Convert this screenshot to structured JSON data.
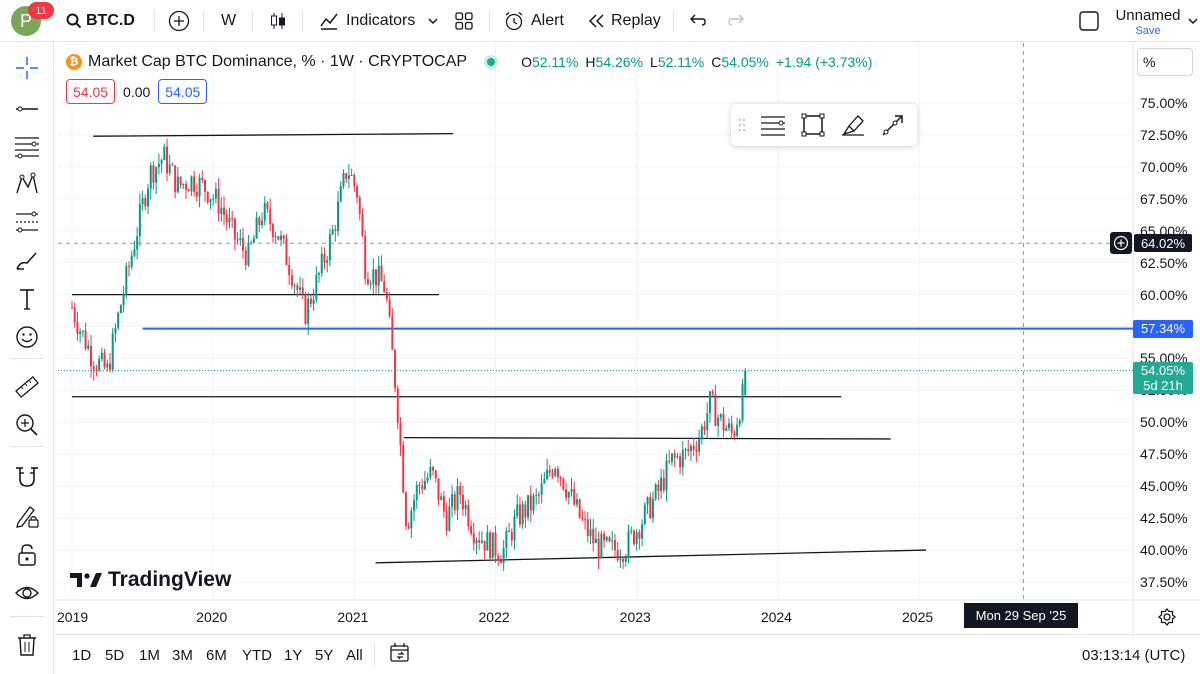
{
  "header": {
    "notification_count": "11",
    "avatar_letter": "P",
    "symbol": "BTC.D",
    "interval": "W",
    "indicators_label": "Indicators",
    "alert_label": "Alert",
    "replay_label": "Replay",
    "layout_name": "Unnamed",
    "save_label": "Save"
  },
  "left_tools": [
    "crosshair-icon",
    "trend-line-icon",
    "fib-lines-icon",
    "pattern-icon",
    "prediction-icon",
    "brush-icon",
    "text-icon",
    "emoji-icon",
    "ruler-icon",
    "zoom-in-icon",
    "magnet-icon",
    "lock-draw-icon",
    "lock-icon",
    "eye-icon",
    "trash-icon"
  ],
  "legend": {
    "title": "Market Cap BTC Dominance, % · 1W · CRYPTOCAP",
    "o_label": "O",
    "o_value": "52.11%",
    "h_label": "H",
    "h_value": "54.26%",
    "l_label": "L",
    "l_value": "52.11%",
    "c_label": "C",
    "c_value": "54.05%",
    "change": "+1.94 (+3.73%)",
    "val1": "54.05",
    "val2": "0.00",
    "val3": "54.05"
  },
  "price_scale": {
    "unit_button": "%",
    "labels": [
      "75.00%",
      "72.50%",
      "70.00%",
      "67.50%",
      "65.00%",
      "62.50%",
      "60.00%",
      "57.50%",
      "55.00%",
      "52.50%",
      "50.00%",
      "47.50%",
      "45.00%",
      "42.50%",
      "40.00%",
      "37.50%"
    ],
    "crosshair_price": "64.02%",
    "hline_price": "57.34%",
    "last_price": "54.05%",
    "countdown": "5d 21h"
  },
  "time_scale": {
    "labels": [
      "2019",
      "2020",
      "2021",
      "2022",
      "2023",
      "2024",
      "2025"
    ],
    "crosshair_date": "Mon 29 Sep '25"
  },
  "watermark": "TradingView",
  "bottom": {
    "ranges": [
      "1D",
      "5D",
      "1M",
      "3M",
      "6M",
      "YTD",
      "1Y",
      "5Y",
      "All"
    ],
    "clock": "03:13:14 (UTC)"
  },
  "colors": {
    "up": "#089981",
    "down": "#f23645",
    "hline": "#2962ff",
    "brand_btc": "#f7931a"
  },
  "chart_data": {
    "type": "candlestick",
    "title": "Market Cap BTC Dominance, % · 1W · CRYPTOCAP",
    "interval": "1W",
    "ylim": [
      36.5,
      77
    ],
    "x_ticks": [
      "2019",
      "2020",
      "2021",
      "2022",
      "2023",
      "2024",
      "2025"
    ],
    "x_range": [
      2019,
      2025.85
    ],
    "approx_path": [
      [
        2019.0,
        59.0
      ],
      [
        2019.05,
        57.5
      ],
      [
        2019.15,
        55.0
      ],
      [
        2019.25,
        54.0
      ],
      [
        2019.35,
        59.5
      ],
      [
        2019.45,
        64.5
      ],
      [
        2019.55,
        69.5
      ],
      [
        2019.65,
        70.8
      ],
      [
        2019.75,
        68.5
      ],
      [
        2019.85,
        69.0
      ],
      [
        2019.95,
        68.3
      ],
      [
        2020.05,
        67.0
      ],
      [
        2020.15,
        64.5
      ],
      [
        2020.25,
        63.0
      ],
      [
        2020.35,
        66.5
      ],
      [
        2020.45,
        65.0
      ],
      [
        2020.55,
        62.0
      ],
      [
        2020.65,
        58.5
      ],
      [
        2020.75,
        61.5
      ],
      [
        2020.85,
        65.0
      ],
      [
        2020.95,
        70.0
      ],
      [
        2021.02,
        68.0
      ],
      [
        2021.08,
        62.0
      ],
      [
        2021.15,
        61.5
      ],
      [
        2021.22,
        60.5
      ],
      [
        2021.3,
        52.0
      ],
      [
        2021.37,
        42.0
      ],
      [
        2021.45,
        45.0
      ],
      [
        2021.55,
        46.0
      ],
      [
        2021.65,
        42.5
      ],
      [
        2021.75,
        44.5
      ],
      [
        2021.85,
        41.5
      ],
      [
        2021.95,
        40.5
      ],
      [
        2022.05,
        39.8
      ],
      [
        2022.15,
        42.5
      ],
      [
        2022.3,
        44.0
      ],
      [
        2022.42,
        47.0
      ],
      [
        2022.5,
        45.0
      ],
      [
        2022.62,
        42.0
      ],
      [
        2022.72,
        40.3
      ],
      [
        2022.82,
        40.0
      ],
      [
        2022.92,
        40.2
      ],
      [
        2023.02,
        42.0
      ],
      [
        2023.15,
        44.5
      ],
      [
        2023.25,
        47.0
      ],
      [
        2023.35,
        47.5
      ],
      [
        2023.45,
        49.0
      ],
      [
        2023.52,
        51.5
      ],
      [
        2023.6,
        50.0
      ],
      [
        2023.68,
        49.0
      ],
      [
        2023.75,
        52.0
      ],
      [
        2023.78,
        54.05
      ]
    ],
    "drawings": {
      "horizontal_line": 57.34,
      "trend_lines": [
        {
          "from": [
            2019.15,
            72.4
          ],
          "to": [
            2021.7,
            72.6
          ]
        },
        {
          "from": [
            2019.0,
            60.0
          ],
          "to": [
            2021.6,
            60.0
          ]
        },
        {
          "from": [
            2019.0,
            52.0
          ],
          "to": [
            2024.45,
            52.0
          ]
        },
        {
          "from": [
            2021.35,
            48.8
          ],
          "to": [
            2024.8,
            48.7
          ]
        },
        {
          "from": [
            2021.15,
            39.0
          ],
          "to": [
            2025.05,
            40.0
          ]
        }
      ]
    },
    "last": {
      "open": 52.11,
      "high": 54.26,
      "low": 52.11,
      "close": 54.05
    }
  }
}
